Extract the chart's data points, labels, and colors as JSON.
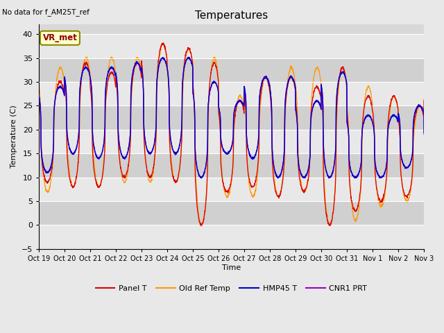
{
  "title": "Temperatures",
  "ylabel": "Temperature (C)",
  "xlabel": "Time",
  "annotation": "No data for f_AM25T_ref",
  "box_label": "VR_met",
  "ylim": [
    -5,
    42
  ],
  "yticks": [
    -5,
    0,
    5,
    10,
    15,
    20,
    25,
    30,
    35,
    40
  ],
  "xtick_labels": [
    "Oct 19",
    "Oct 20",
    "Oct 21",
    "Oct 22",
    "Oct 23",
    "Oct 24",
    "Oct 25",
    "Oct 26",
    "Oct 27",
    "Oct 28",
    "Oct 29",
    "Oct 30",
    "Oct 31",
    "Nov 1",
    "Nov 2",
    "Nov 3"
  ],
  "legend_entries": [
    "Panel T",
    "Old Ref Temp",
    "HMP45 T",
    "CNR1 PRT"
  ],
  "colors": {
    "panel_t": "#dd0000",
    "old_ref": "#ff9900",
    "hmp45": "#0000cc",
    "cnr1": "#9900cc"
  },
  "fig_bg": "#e8e8e8",
  "plot_bg": "#d8d8d8",
  "band_light": "#e8e8e8",
  "band_dark": "#d0d0d0",
  "num_days": 16,
  "pts_per_day": 144,
  "daily_peaks": [
    30,
    34,
    32,
    34,
    38,
    37,
    34,
    26,
    31,
    31,
    29,
    33,
    27,
    27,
    25,
    29
  ],
  "daily_mins": [
    9,
    8,
    8,
    10,
    10,
    9,
    0,
    7,
    8,
    6,
    7,
    0,
    3,
    5,
    6,
    10
  ],
  "old_ref_peaks": [
    33,
    35,
    35,
    35,
    38,
    37,
    35,
    27,
    31,
    33,
    33,
    33,
    29,
    27,
    25,
    29
  ],
  "old_ref_mins": [
    7,
    8,
    8,
    9,
    9,
    9,
    0,
    6,
    6,
    6,
    7,
    0,
    1,
    4,
    5,
    9
  ],
  "hmp45_peaks": [
    29,
    33,
    33,
    34,
    35,
    35,
    30,
    26,
    31,
    31,
    26,
    32,
    23,
    23,
    25,
    20
  ],
  "hmp45_mins": [
    11,
    15,
    14,
    14,
    15,
    15,
    10,
    15,
    14,
    10,
    10,
    10,
    10,
    10,
    12,
    13
  ],
  "cnr1_peaks": [
    29,
    33,
    33,
    34,
    35,
    35,
    30,
    26,
    31,
    31,
    26,
    32,
    23,
    23,
    25,
    20
  ],
  "cnr1_mins": [
    11,
    15,
    14,
    14,
    15,
    15,
    10,
    15,
    14,
    10,
    10,
    10,
    10,
    10,
    12,
    13
  ]
}
